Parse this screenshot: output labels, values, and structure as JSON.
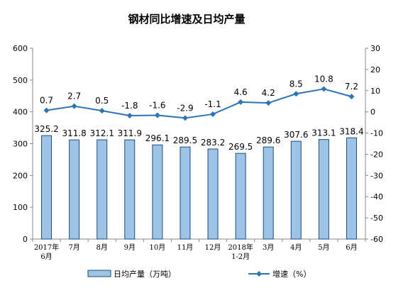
{
  "chart_data": {
    "type": "bar",
    "title": "钢材同比增速及日均产量",
    "categories": [
      [
        "2017年",
        "6月"
      ],
      [
        "7月"
      ],
      [
        "8月"
      ],
      [
        "9月"
      ],
      [
        "10月"
      ],
      [
        "11月"
      ],
      [
        "12月"
      ],
      [
        "2018年",
        "1-2月"
      ],
      [
        "3月"
      ],
      [
        "4月"
      ],
      [
        "5月"
      ],
      [
        "6月"
      ]
    ],
    "series": [
      {
        "name": "日均产量（万吨）",
        "type": "bar",
        "axis": "left",
        "values": [
          325.2,
          311.8,
          312.1,
          311.9,
          296.1,
          289.5,
          283.2,
          269.5,
          289.6,
          307.6,
          313.1,
          318.4
        ],
        "labels": [
          "325.2",
          "311.8",
          "312.1",
          "311.9",
          "296.1",
          "289.5",
          "283.2",
          "269.5",
          "289.6",
          "307.6",
          "313.1",
          "318.4"
        ],
        "color": "#9dc3e6",
        "border": "#1f4e79"
      },
      {
        "name": "增速（%）",
        "type": "line",
        "axis": "right",
        "values": [
          0.7,
          2.7,
          0.5,
          -1.8,
          -1.6,
          -2.9,
          -1.1,
          4.6,
          4.2,
          8.5,
          10.8,
          7.2
        ],
        "labels": [
          "0.7",
          "2.7",
          "0.5",
          "-1.8",
          "-1.6",
          "-2.9",
          "-1.1",
          "4.6",
          "4.2",
          "8.5",
          "10.8",
          "7.2"
        ],
        "color": "#2e75b6"
      }
    ],
    "y_left": {
      "min": 0,
      "max": 600,
      "ticks": [
        "0",
        "100",
        "200",
        "300",
        "400",
        "500",
        "600"
      ]
    },
    "y_right": {
      "min": -60,
      "max": 30,
      "ticks": [
        "-60",
        "-50",
        "-40",
        "-30",
        "-20",
        "-10",
        "0",
        "10",
        "20",
        "30"
      ]
    },
    "xlabel": "",
    "ylabel": "",
    "grid": false,
    "legend_position": "bottom"
  }
}
